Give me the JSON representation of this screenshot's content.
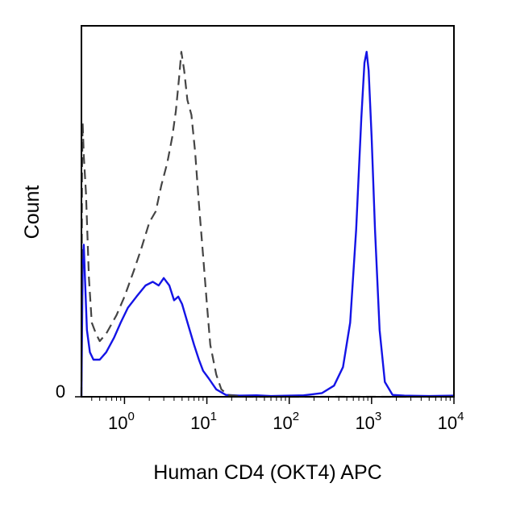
{
  "chart_data": {
    "type": "line",
    "xlabel": "Human CD4 (OKT4) APC",
    "ylabel": "Count",
    "x_scale": "log",
    "xlim": [
      0.3,
      10000
    ],
    "ylim": [
      0,
      1
    ],
    "x_ticks": [
      {
        "base": "10",
        "exp": "0",
        "value": 1
      },
      {
        "base": "10",
        "exp": "1",
        "value": 10
      },
      {
        "base": "10",
        "exp": "2",
        "value": 100
      },
      {
        "base": "10",
        "exp": "3",
        "value": 1000
      },
      {
        "base": "10",
        "exp": "4",
        "value": 10000
      }
    ],
    "y_ticks": [
      {
        "label": "0",
        "value": 0
      }
    ],
    "grid": false,
    "series": [
      {
        "color": "#1414e6",
        "dash": "solid",
        "points": [
          [
            0.3,
            0.0
          ],
          [
            0.31,
            0.35
          ],
          [
            0.32,
            0.41
          ],
          [
            0.33,
            0.33
          ],
          [
            0.35,
            0.18
          ],
          [
            0.38,
            0.12
          ],
          [
            0.42,
            0.1
          ],
          [
            0.5,
            0.1
          ],
          [
            0.6,
            0.12
          ],
          [
            0.75,
            0.16
          ],
          [
            0.9,
            0.2
          ],
          [
            1.1,
            0.24
          ],
          [
            1.4,
            0.27
          ],
          [
            1.8,
            0.3
          ],
          [
            2.2,
            0.31
          ],
          [
            2.6,
            0.3
          ],
          [
            3.0,
            0.32
          ],
          [
            3.5,
            0.3
          ],
          [
            4.0,
            0.26
          ],
          [
            4.5,
            0.27
          ],
          [
            5.0,
            0.25
          ],
          [
            6.0,
            0.19
          ],
          [
            7.0,
            0.14
          ],
          [
            8.0,
            0.1
          ],
          [
            9.0,
            0.07
          ],
          [
            10.5,
            0.05
          ],
          [
            13.0,
            0.02
          ],
          [
            17.0,
            0.005
          ],
          [
            25.0,
            0.003
          ],
          [
            40.0,
            0.004
          ],
          [
            60.0,
            0.002
          ],
          [
            100.0,
            0.003
          ],
          [
            150.0,
            0.004
          ],
          [
            250.0,
            0.01
          ],
          [
            350.0,
            0.03
          ],
          [
            450.0,
            0.08
          ],
          [
            550.0,
            0.2
          ],
          [
            650.0,
            0.45
          ],
          [
            750.0,
            0.75
          ],
          [
            820.0,
            0.9
          ],
          [
            870.0,
            0.93
          ],
          [
            920.0,
            0.88
          ],
          [
            1000.0,
            0.7
          ],
          [
            1100.0,
            0.45
          ],
          [
            1250.0,
            0.18
          ],
          [
            1450.0,
            0.04
          ],
          [
            1800.0,
            0.005
          ],
          [
            2500.0,
            0.003
          ],
          [
            5000.0,
            0.002
          ],
          [
            10000.0,
            0.003
          ]
        ]
      },
      {
        "color": "#444444",
        "dash": "dashed",
        "points": [
          [
            0.3,
            0.0
          ],
          [
            0.305,
            0.6
          ],
          [
            0.31,
            0.74
          ],
          [
            0.32,
            0.65
          ],
          [
            0.34,
            0.55
          ],
          [
            0.37,
            0.32
          ],
          [
            0.4,
            0.2
          ],
          [
            0.45,
            0.17
          ],
          [
            0.5,
            0.15
          ],
          [
            0.6,
            0.17
          ],
          [
            0.8,
            0.22
          ],
          [
            1.0,
            0.27
          ],
          [
            1.3,
            0.34
          ],
          [
            1.6,
            0.4
          ],
          [
            2.0,
            0.47
          ],
          [
            2.4,
            0.5
          ],
          [
            2.8,
            0.57
          ],
          [
            3.3,
            0.63
          ],
          [
            3.8,
            0.7
          ],
          [
            4.2,
            0.77
          ],
          [
            4.6,
            0.86
          ],
          [
            4.9,
            0.93
          ],
          [
            5.3,
            0.88
          ],
          [
            5.8,
            0.8
          ],
          [
            6.5,
            0.76
          ],
          [
            7.2,
            0.66
          ],
          [
            8.0,
            0.52
          ],
          [
            9.0,
            0.38
          ],
          [
            10.0,
            0.25
          ],
          [
            11.0,
            0.14
          ],
          [
            13.0,
            0.06
          ],
          [
            15.0,
            0.02
          ],
          [
            18.0,
            0.005
          ],
          [
            30.0,
            0.0
          ],
          [
            1000.0,
            0.0
          ],
          [
            10000.0,
            0.0
          ]
        ]
      }
    ]
  }
}
